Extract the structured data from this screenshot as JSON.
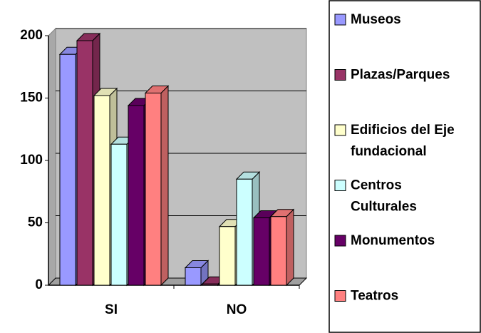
{
  "chart_data": {
    "type": "bar3d",
    "categories": [
      "SI",
      "NO"
    ],
    "series": [
      {
        "name": "Museos",
        "color": "#9999ff",
        "values": [
          185,
          14
        ]
      },
      {
        "name": "Plazas/Parques",
        "color": "#993366",
        "values": [
          196,
          1
        ]
      },
      {
        "name": "Edificios del Eje fundacional",
        "color": "#ffffcc",
        "values": [
          152,
          47
        ]
      },
      {
        "name": "Centros Culturales",
        "color": "#ccffff",
        "values": [
          113,
          85
        ]
      },
      {
        "name": "Monumentos",
        "color": "#660066",
        "values": [
          144,
          54
        ]
      },
      {
        "name": "Teatros",
        "color": "#ff8080",
        "values": [
          154,
          55
        ]
      }
    ],
    "ylim": [
      0,
      200
    ],
    "yticks": [
      0,
      50,
      100,
      150,
      200
    ],
    "grid": true,
    "legend": "right"
  }
}
